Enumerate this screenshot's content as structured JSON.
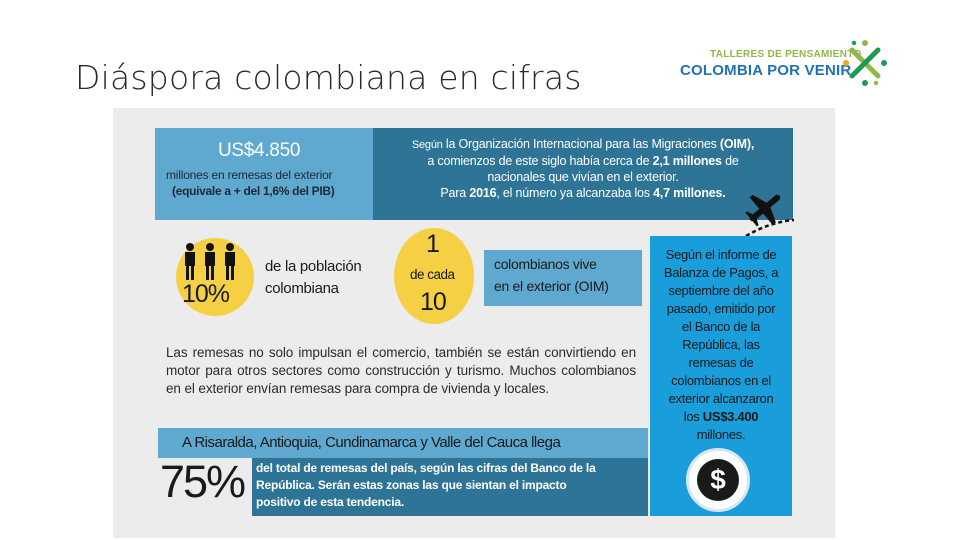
{
  "slide": {
    "title": "Diáspora colombiana en cifras"
  },
  "logo": {
    "line1": "TALLERES DE PENSAMIENTO",
    "line2": "COLOMBIA POR VENIR"
  },
  "remesas": {
    "amount": "US$4.850",
    "sub": "millones en remesas del exterior",
    "equiv": "(equivale a + del 1,6% del PIB)"
  },
  "oim": {
    "line1_a": "Según",
    "line1_b": " la Organización Internacional para las Migraciones ",
    "line1_c": "(OIM),",
    "line2_a": "a comienzos de este siglo había cerca de ",
    "line2_b": "2,1 millones",
    "line2_c": " de",
    "line3": "nacionales que vivían en el exterior.",
    "line4_a": "Para ",
    "line4_b": "2016",
    "line4_c": ", el número ya alcanzaba los ",
    "line4_d": "4,7 millones."
  },
  "poblacion": {
    "pct": "10%",
    "line1": "de la población",
    "line2": "colombiana"
  },
  "ratio": {
    "one": "1",
    "decada": "de cada",
    "ten": "10"
  },
  "colombianos": {
    "line1": "colombianos vive",
    "line2": "en el exterior (OIM)"
  },
  "paragraph": "Las remesas no solo impulsan el comercio, también se están convirtiendo en motor para otros sectores como construcción y turismo. Muchos colombianos en el exterior envían remesas para compra de vivienda y locales.",
  "regions": {
    "text": "A Risaralda, Antioquia, Cundinamarca y Valle del Cauca llega"
  },
  "total": {
    "pct": "75%",
    "line1": "del total de remesas del país, según las cifras del Banco de la",
    "line2": "República. Serán estas zonas las que sientan el impacto",
    "line3": "positivo de esta tendencia."
  },
  "banco": {
    "lines": [
      "Según el informe de",
      "Balanza de Pagos, a",
      "septiembre del año",
      "pasado, emitido por",
      "el Banco de la",
      "República, las",
      "remesas de",
      "colombianos en el",
      "exterior alcanzaron"
    ],
    "amount_prefix": "los ",
    "amount": "US$3.400",
    "last": "millones.",
    "dollar": "$"
  },
  "colors": {
    "light_blue": "#5fa9d0",
    "dark_blue": "#2e7496",
    "bright_blue": "#1a9ddb",
    "yellow": "#f6d044"
  },
  "icons": [
    "people-icon",
    "airplane-icon",
    "dollar-icon",
    "logo-mark-icon"
  ]
}
